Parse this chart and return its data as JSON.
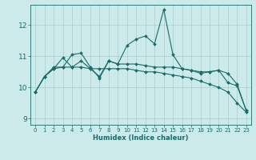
{
  "xlabel": "Humidex (Indice chaleur)",
  "background_color": "#cceaea",
  "grid_color": "#aacccc",
  "line_color": "#1a6b6b",
  "xlim": [
    -0.5,
    23.5
  ],
  "ylim": [
    8.8,
    12.65
  ],
  "yticks": [
    9,
    10,
    11,
    12
  ],
  "xticks": [
    0,
    1,
    2,
    3,
    4,
    5,
    6,
    7,
    8,
    9,
    10,
    11,
    12,
    13,
    14,
    15,
    16,
    17,
    18,
    19,
    20,
    21,
    22,
    23
  ],
  "lines": [
    {
      "x": [
        0,
        1,
        2,
        3,
        4,
        5,
        6,
        7,
        8,
        9,
        10,
        11,
        12,
        13,
        14,
        15,
        16,
        17,
        18,
        19,
        20,
        21,
        22,
        23
      ],
      "y": [
        9.85,
        10.35,
        10.6,
        10.95,
        10.65,
        10.85,
        10.6,
        10.35,
        10.85,
        10.75,
        11.35,
        11.55,
        11.65,
        11.4,
        12.5,
        11.05,
        10.6,
        10.55,
        10.45,
        10.5,
        10.55,
        10.15,
        10.05,
        9.25
      ]
    },
    {
      "x": [
        0,
        1,
        2,
        3,
        4,
        5,
        6,
        7,
        8,
        9,
        10,
        11,
        12,
        13,
        14,
        15,
        16,
        17,
        18,
        19,
        20,
        21,
        22,
        23
      ],
      "y": [
        9.85,
        10.35,
        10.6,
        10.65,
        10.65,
        10.65,
        10.6,
        10.6,
        10.6,
        10.6,
        10.6,
        10.55,
        10.5,
        10.5,
        10.45,
        10.4,
        10.35,
        10.3,
        10.2,
        10.1,
        10.0,
        9.85,
        9.5,
        9.2
      ]
    },
    {
      "x": [
        0,
        1,
        2,
        3,
        4,
        5,
        6,
        7,
        8,
        9,
        10,
        11,
        12,
        13,
        14,
        15,
        16,
        17,
        18,
        19,
        20,
        21,
        22,
        23
      ],
      "y": [
        9.85,
        10.35,
        10.65,
        10.65,
        11.05,
        11.1,
        10.65,
        10.3,
        10.85,
        10.75,
        10.75,
        10.75,
        10.7,
        10.65,
        10.65,
        10.65,
        10.6,
        10.55,
        10.5,
        10.5,
        10.55,
        10.45,
        10.1,
        9.25
      ]
    }
  ]
}
